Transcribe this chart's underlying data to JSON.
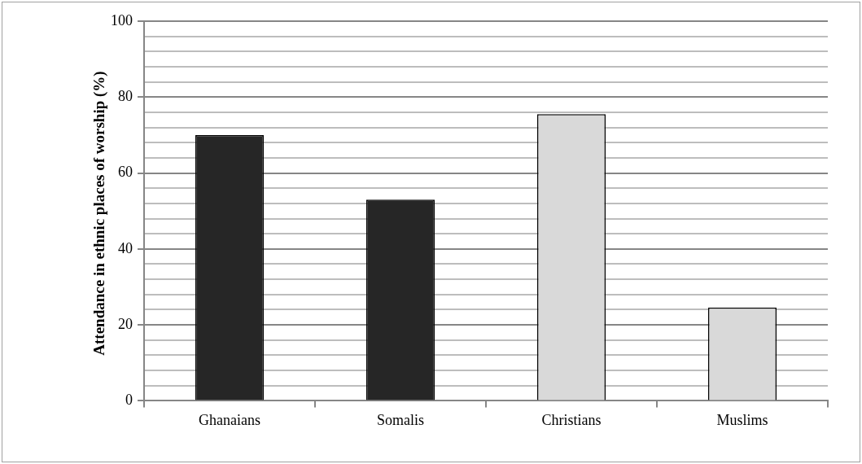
{
  "chart_data": {
    "type": "bar",
    "ylabel": "Attendance in ethnic places of worship (%)",
    "categories": [
      "Ghanaians",
      "Somalis",
      "Christians",
      "Muslims"
    ],
    "values": [
      70,
      53,
      75.5,
      24.6
    ],
    "colors": [
      "#262626",
      "#262626",
      "#d9d9d9",
      "#d9d9d9"
    ],
    "ylim": [
      0,
      100
    ],
    "yticks": [
      0,
      {
        "value": 4,
        "label": null
      },
      {
        "value": 8,
        "label": null
      },
      {
        "value": 12,
        "label": null
      },
      {
        "value": 16,
        "label": null
      },
      20,
      {
        "value": 24,
        "label": null
      },
      {
        "value": 28,
        "label": null
      },
      {
        "value": 32,
        "label": null
      },
      {
        "value": 36,
        "label": null
      },
      40,
      {
        "value": 44,
        "label": null
      },
      {
        "value": 48,
        "label": null
      },
      {
        "value": 52,
        "label": null
      },
      {
        "value": 56,
        "label": null
      },
      60,
      {
        "value": 64,
        "label": null
      },
      {
        "value": 68,
        "label": null
      },
      {
        "value": 72,
        "label": null
      },
      {
        "value": 76,
        "label": null
      },
      80,
      {
        "value": 84,
        "label": null
      },
      {
        "value": 88,
        "label": null
      },
      {
        "value": 92,
        "label": null
      },
      {
        "value": 96,
        "label": null
      },
      100
    ],
    "grid": "y",
    "legend": false
  }
}
